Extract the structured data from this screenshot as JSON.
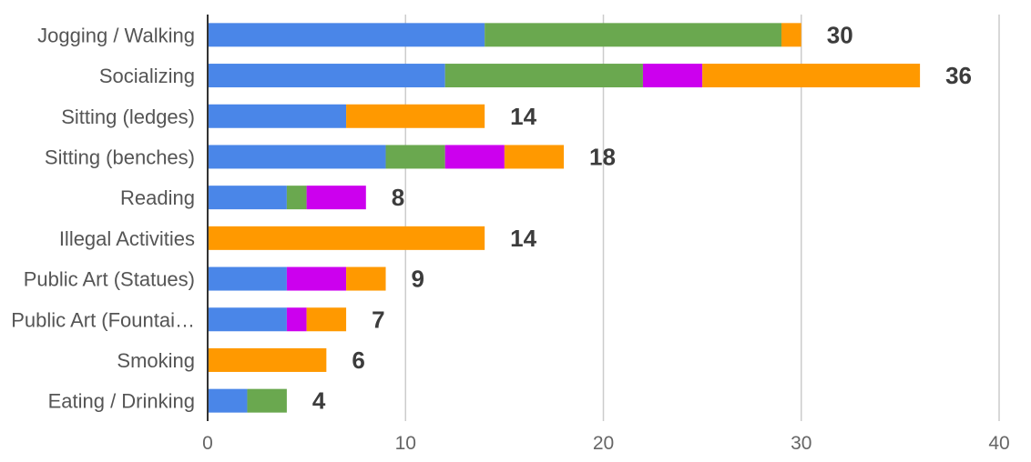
{
  "chart_data": {
    "type": "bar",
    "orientation": "horizontal",
    "stacked": true,
    "title": "",
    "xlabel": "",
    "ylabel": "",
    "categories": [
      "Jogging / Walking",
      "Socializing",
      "Sitting (ledges)",
      "Sitting (benches)",
      "Reading",
      "Illegal Activities",
      "Public Art (Statues)",
      "Public Art (Fountai…",
      "Smoking",
      "Eating / Drinking"
    ],
    "series": [
      {
        "color": "#4a86e8",
        "values": [
          14,
          12,
          7,
          9,
          4,
          0,
          4,
          4,
          0,
          2
        ]
      },
      {
        "color": "#6aa84f",
        "values": [
          15,
          10,
          0,
          3,
          1,
          0,
          0,
          0,
          0,
          2
        ]
      },
      {
        "color": "#cc00ee",
        "values": [
          0,
          3,
          0,
          3,
          3,
          0,
          3,
          1,
          0,
          0
        ]
      },
      {
        "color": "#ff9900",
        "values": [
          1,
          11,
          7,
          3,
          0,
          14,
          2,
          2,
          6,
          0
        ]
      }
    ],
    "totals": [
      "30",
      "36",
      "14",
      "18",
      "8",
      "14",
      "9",
      "7",
      "6",
      "4"
    ],
    "xlim": [
      0,
      40
    ],
    "xticks": [
      "0",
      "10",
      "20",
      "30",
      "40"
    ],
    "grid": true,
    "legend": "none"
  }
}
